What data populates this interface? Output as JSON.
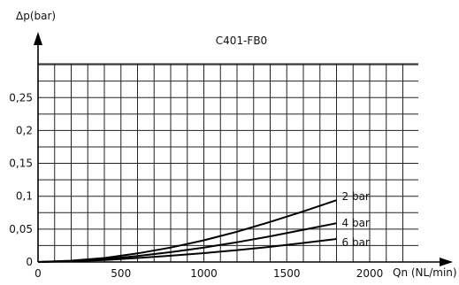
{
  "chart_data": {
    "type": "line",
    "title": "C401-FB0",
    "xlabel": "Qn (NL/min)",
    "ylabel": "Δp(bar)",
    "xlim": [
      0,
      2000
    ],
    "ylim": [
      0,
      0.3
    ],
    "grid": true,
    "x_ticks": [
      "0",
      "500",
      "1000",
      "1500",
      "2000"
    ],
    "y_ticks": [
      "0",
      "0,05",
      "0,1",
      "0,15",
      "0,2",
      "0,25"
    ],
    "series": [
      {
        "name": "2 bar",
        "x": [
          0,
          200,
          400,
          600,
          800,
          1000,
          1200,
          1400,
          1600,
          1800
        ],
        "y": [
          0,
          0.002,
          0.006,
          0.013,
          0.022,
          0.033,
          0.046,
          0.061,
          0.077,
          0.094
        ]
      },
      {
        "name": "4 bar",
        "x": [
          0,
          200,
          400,
          600,
          800,
          1000,
          1200,
          1400,
          1600,
          1800
        ],
        "y": [
          0,
          0.0015,
          0.0045,
          0.009,
          0.015,
          0.022,
          0.03,
          0.039,
          0.049,
          0.059
        ]
      },
      {
        "name": "6 bar",
        "x": [
          0,
          200,
          400,
          600,
          800,
          1000,
          1200,
          1400,
          1600,
          1800
        ],
        "y": [
          0,
          0.001,
          0.003,
          0.006,
          0.0095,
          0.0135,
          0.018,
          0.023,
          0.029,
          0.035
        ]
      }
    ]
  }
}
